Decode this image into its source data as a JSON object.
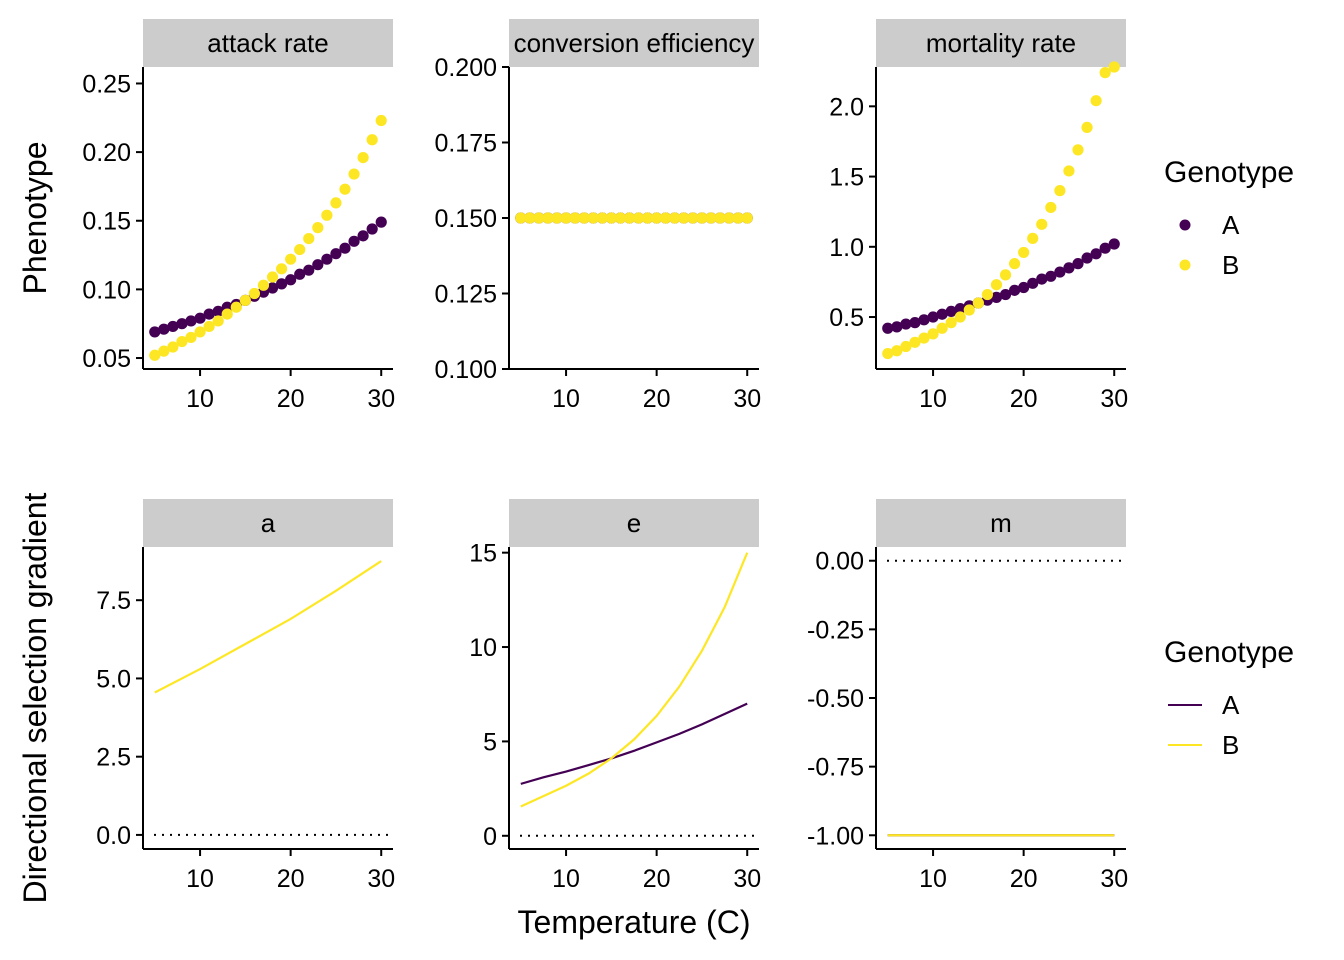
{
  "axis_titles": {
    "x": "Temperature (C)",
    "y_top": "Phenotype",
    "y_bottom": "Directional selection gradient"
  },
  "legend_top": {
    "title": "Genotype",
    "items": [
      {
        "label": "A",
        "color": "#440154"
      },
      {
        "label": "B",
        "color": "#FDE725"
      }
    ]
  },
  "legend_bottom": {
    "title": "Genotype",
    "items": [
      {
        "label": "A",
        "color": "#440154"
      },
      {
        "label": "B",
        "color": "#FDE725"
      }
    ]
  },
  "chart_data": [
    {
      "type": "scatter",
      "strip": "attack rate",
      "xlim": [
        3.7,
        31.3
      ],
      "ylim": [
        0.042,
        0.262
      ],
      "xticks": [
        10,
        20,
        30
      ],
      "yticks": [
        0.05,
        0.1,
        0.15,
        0.2,
        0.25
      ],
      "ytick_labels": [
        "0.05",
        "0.10",
        "0.15",
        "0.20",
        "0.25"
      ],
      "x": [
        5,
        6,
        7,
        8,
        9,
        10,
        11,
        12,
        13,
        14,
        15,
        16,
        17,
        18,
        19,
        20,
        21,
        22,
        23,
        24,
        25,
        26,
        27,
        28,
        29,
        30
      ],
      "series": [
        {
          "name": "A",
          "values": [
            0.069,
            0.071,
            0.073,
            0.075,
            0.077,
            0.079,
            0.082,
            0.084,
            0.087,
            0.089,
            0.092,
            0.095,
            0.098,
            0.101,
            0.104,
            0.107,
            0.111,
            0.114,
            0.118,
            0.122,
            0.126,
            0.13,
            0.135,
            0.139,
            0.144,
            0.149
          ]
        },
        {
          "name": "B",
          "values": [
            0.052,
            0.055,
            0.058,
            0.062,
            0.065,
            0.069,
            0.073,
            0.077,
            0.082,
            0.087,
            0.092,
            0.097,
            0.103,
            0.109,
            0.115,
            0.122,
            0.129,
            0.137,
            0.145,
            0.154,
            0.163,
            0.173,
            0.184,
            0.196,
            0.209,
            0.223
          ]
        }
      ]
    },
    {
      "type": "scatter",
      "strip": "conversion efficiency",
      "xlim": [
        3.7,
        31.3
      ],
      "ylim": [
        0.1,
        0.2
      ],
      "xticks": [
        10,
        20,
        30
      ],
      "yticks": [
        0.1,
        0.125,
        0.15,
        0.175,
        0.2
      ],
      "ytick_labels": [
        "0.100",
        "0.125",
        "0.150",
        "0.175",
        "0.200"
      ],
      "x": [
        5,
        6,
        7,
        8,
        9,
        10,
        11,
        12,
        13,
        14,
        15,
        16,
        17,
        18,
        19,
        20,
        21,
        22,
        23,
        24,
        25,
        26,
        27,
        28,
        29,
        30
      ],
      "series": [
        {
          "name": "A",
          "values": [
            0.15,
            0.15,
            0.15,
            0.15,
            0.15,
            0.15,
            0.15,
            0.15,
            0.15,
            0.15,
            0.15,
            0.15,
            0.15,
            0.15,
            0.15,
            0.15,
            0.15,
            0.15,
            0.15,
            0.15,
            0.15,
            0.15,
            0.15,
            0.15,
            0.15,
            0.15
          ]
        },
        {
          "name": "B",
          "values": [
            0.15,
            0.15,
            0.15,
            0.15,
            0.15,
            0.15,
            0.15,
            0.15,
            0.15,
            0.15,
            0.15,
            0.15,
            0.15,
            0.15,
            0.15,
            0.15,
            0.15,
            0.15,
            0.15,
            0.15,
            0.15,
            0.15,
            0.15,
            0.15,
            0.15,
            0.15
          ]
        }
      ]
    },
    {
      "type": "scatter",
      "strip": "mortality rate",
      "xlim": [
        3.7,
        31.3
      ],
      "ylim": [
        0.13,
        2.28
      ],
      "xticks": [
        10,
        20,
        30
      ],
      "yticks": [
        0.5,
        1.0,
        1.5,
        2.0
      ],
      "ytick_labels": [
        "0.5",
        "1.0",
        "1.5",
        "2.0"
      ],
      "x": [
        5,
        6,
        7,
        8,
        9,
        10,
        11,
        12,
        13,
        14,
        15,
        16,
        17,
        18,
        19,
        20,
        21,
        22,
        23,
        24,
        25,
        26,
        27,
        28,
        29,
        30
      ],
      "series": [
        {
          "name": "A",
          "values": [
            0.42,
            0.43,
            0.45,
            0.46,
            0.48,
            0.5,
            0.52,
            0.54,
            0.56,
            0.58,
            0.6,
            0.62,
            0.64,
            0.66,
            0.69,
            0.71,
            0.74,
            0.77,
            0.79,
            0.82,
            0.85,
            0.88,
            0.92,
            0.95,
            0.99,
            1.02
          ]
        },
        {
          "name": "B",
          "values": [
            0.24,
            0.26,
            0.29,
            0.32,
            0.35,
            0.38,
            0.42,
            0.46,
            0.5,
            0.55,
            0.6,
            0.66,
            0.73,
            0.8,
            0.88,
            0.96,
            1.06,
            1.16,
            1.28,
            1.4,
            1.54,
            1.69,
            1.85,
            2.04,
            2.24,
            2.46
          ]
        }
      ]
    },
    {
      "type": "line",
      "strip": "a",
      "xlim": [
        3.7,
        31.3
      ],
      "ylim": [
        -0.45,
        9.2
      ],
      "xticks": [
        10,
        20,
        30
      ],
      "yticks": [
        0,
        2.5,
        5,
        7.5
      ],
      "ytick_labels": [
        "0.0",
        "2.5",
        "5.0",
        "7.5"
      ],
      "reference_line": 0,
      "x": [
        5,
        10,
        15,
        20,
        25,
        30
      ],
      "series": [
        {
          "name": "B",
          "values": [
            4.55,
            5.3,
            6.1,
            6.9,
            7.8,
            8.75
          ]
        }
      ]
    },
    {
      "type": "line",
      "strip": "e",
      "xlim": [
        3.7,
        31.3
      ],
      "ylim": [
        -0.7,
        15.3
      ],
      "xticks": [
        10,
        20,
        30
      ],
      "yticks": [
        0,
        5,
        10,
        15
      ],
      "ytick_labels": [
        "0",
        "5",
        "10",
        "15"
      ],
      "reference_line": 0,
      "x": [
        5,
        7.5,
        10,
        12.5,
        15,
        17.5,
        20,
        22.5,
        25,
        27.5,
        30
      ],
      "series": [
        {
          "name": "A",
          "values": [
            2.75,
            3.1,
            3.4,
            3.75,
            4.1,
            4.5,
            4.95,
            5.4,
            5.9,
            6.45,
            7.0
          ]
        },
        {
          "name": "B",
          "values": [
            1.55,
            2.1,
            2.65,
            3.3,
            4.1,
            5.1,
            6.35,
            7.9,
            9.8,
            12.1,
            15.0
          ]
        }
      ]
    },
    {
      "type": "line",
      "strip": "m",
      "xlim": [
        3.7,
        31.3
      ],
      "ylim": [
        -1.05,
        0.05
      ],
      "xticks": [
        10,
        20,
        30
      ],
      "yticks": [
        -1,
        -0.75,
        -0.5,
        -0.25,
        0
      ],
      "ytick_labels": [
        "-1.00",
        "-0.75",
        "-0.50",
        "-0.25",
        "0.00"
      ],
      "reference_line": 0,
      "x": [
        5,
        30
      ],
      "series": [
        {
          "name": "A",
          "values": [
            -1,
            -1
          ]
        },
        {
          "name": "B",
          "values": [
            -1,
            -1
          ]
        }
      ]
    }
  ]
}
